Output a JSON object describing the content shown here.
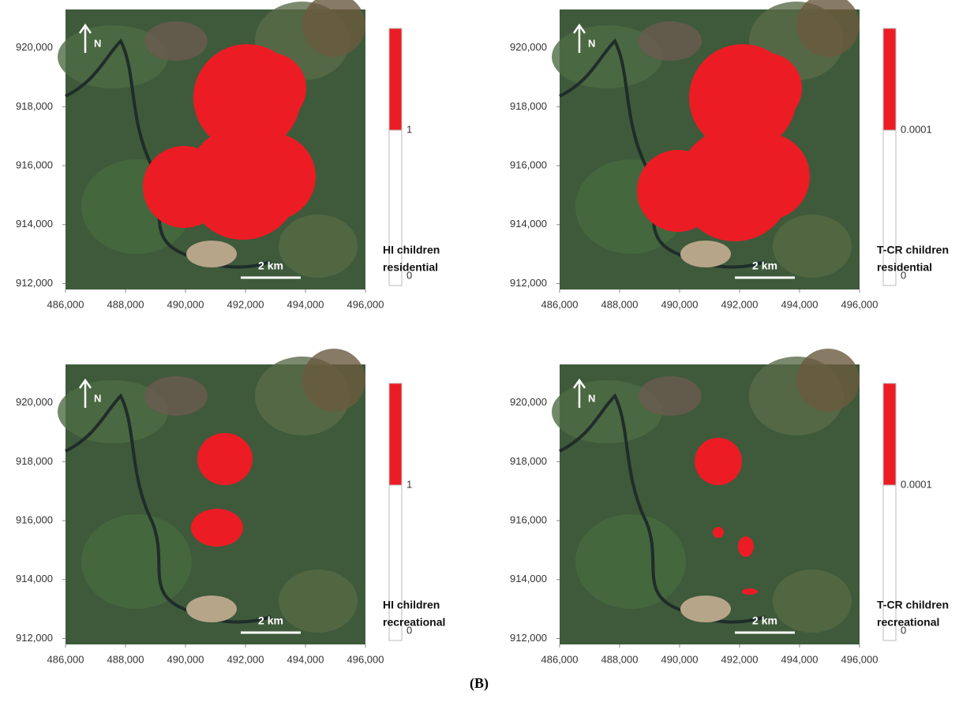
{
  "caption": "(B)",
  "color": "#ec1c24",
  "panels": [
    {
      "legend_title": [
        "HI children",
        "residential"
      ],
      "legend": {
        "threshold": 1,
        "min": 0
      },
      "scale_bar": "2 km",
      "north": "N",
      "xlim": [
        486000,
        496000
      ],
      "ylim": [
        911800,
        921300
      ],
      "xticks": [
        {
          "value": 486000,
          "label": "486,000"
        },
        {
          "value": 488000,
          "label": "488,000"
        },
        {
          "value": 490000,
          "label": "490,000"
        },
        {
          "value": 492000,
          "label": "492,000"
        },
        {
          "value": 494000,
          "label": "494,000"
        },
        {
          "value": 496000,
          "label": "496,000"
        }
      ],
      "yticks": [
        {
          "value": 912000,
          "label": "912,000"
        },
        {
          "value": 914000,
          "label": "914,000"
        },
        {
          "value": 916000,
          "label": "916,000"
        },
        {
          "value": 918000,
          "label": "918,000"
        },
        {
          "value": 920000,
          "label": "920,000"
        }
      ]
    },
    {
      "legend_title": [
        "T-CR children",
        "residential"
      ],
      "legend": {
        "threshold": 0.0001,
        "min": 0
      },
      "scale_bar": "2 km",
      "north": "N",
      "xlim": [
        486000,
        496000
      ],
      "ylim": [
        911800,
        921300
      ],
      "xticks": [
        {
          "value": 486000,
          "label": "486,000"
        },
        {
          "value": 488000,
          "label": "488,000"
        },
        {
          "value": 490000,
          "label": "490,000"
        },
        {
          "value": 492000,
          "label": "492,000"
        },
        {
          "value": 494000,
          "label": "494,000"
        },
        {
          "value": 496000,
          "label": "496,000"
        }
      ],
      "yticks": [
        {
          "value": 912000,
          "label": "912,000"
        },
        {
          "value": 914000,
          "label": "914,000"
        },
        {
          "value": 916000,
          "label": "916,000"
        },
        {
          "value": 918000,
          "label": "918,000"
        },
        {
          "value": 920000,
          "label": "920,000"
        }
      ]
    },
    {
      "legend_title": [
        "HI children",
        "recreational"
      ],
      "legend": {
        "threshold": 1,
        "min": 0
      },
      "scale_bar": "2 km",
      "north": "N",
      "xlim": [
        486000,
        496000
      ],
      "ylim": [
        911800,
        921300
      ],
      "xticks": [
        {
          "value": 486000,
          "label": "486,000"
        },
        {
          "value": 488000,
          "label": "488,000"
        },
        {
          "value": 490000,
          "label": "490,000"
        },
        {
          "value": 492000,
          "label": "492,000"
        },
        {
          "value": 494000,
          "label": "494,000"
        },
        {
          "value": 496000,
          "label": "496,000"
        }
      ],
      "yticks": [
        {
          "value": 912000,
          "label": "912,000"
        },
        {
          "value": 914000,
          "label": "914,000"
        },
        {
          "value": 916000,
          "label": "916,000"
        },
        {
          "value": 918000,
          "label": "918,000"
        },
        {
          "value": 920000,
          "label": "920,000"
        }
      ]
    },
    {
      "legend_title": [
        "T-CR children",
        "recreational"
      ],
      "legend": {
        "threshold": 0.0001,
        "min": 0
      },
      "scale_bar": "2 km",
      "north": "N",
      "xlim": [
        486000,
        496000
      ],
      "ylim": [
        911800,
        921300
      ],
      "xticks": [
        {
          "value": 486000,
          "label": "486,000"
        },
        {
          "value": 488000,
          "label": "488,000"
        },
        {
          "value": 490000,
          "label": "490,000"
        },
        {
          "value": 492000,
          "label": "492,000"
        },
        {
          "value": 494000,
          "label": "494,000"
        },
        {
          "value": 496000,
          "label": "496,000"
        }
      ],
      "yticks": [
        {
          "value": 912000,
          "label": "912,000"
        },
        {
          "value": 914000,
          "label": "914,000"
        },
        {
          "value": 916000,
          "label": "916,000"
        },
        {
          "value": 918000,
          "label": "918,000"
        },
        {
          "value": 920000,
          "label": "920,000"
        }
      ]
    }
  ]
}
